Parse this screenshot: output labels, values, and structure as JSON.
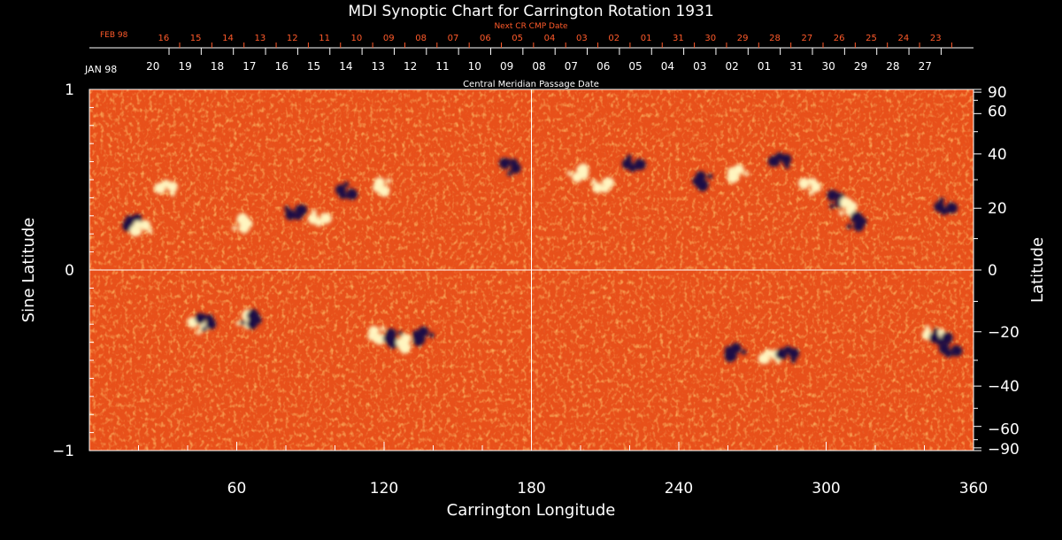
{
  "chart_data": {
    "type": "heatmap",
    "title": "MDI Synoptic Chart for Carrington Rotation 1931",
    "xlabel": "Carrington Longitude",
    "ylabel_left": "Sine Latitude",
    "ylabel_right": "Latitude",
    "xlim": [
      0,
      360
    ],
    "ylim": [
      -1,
      1
    ],
    "x_ticks": [
      60,
      120,
      180,
      240,
      300,
      360
    ],
    "y_ticks_left": [
      "1",
      "0",
      "−1"
    ],
    "y_ticks_right": [
      90,
      60,
      40,
      20,
      0,
      -20,
      -40,
      -60,
      -90
    ],
    "y_ticks_right_labels": [
      "90",
      "60",
      "40",
      "20",
      "0",
      "−20",
      "−40",
      "−60",
      "−90"
    ],
    "grid": "lines at longitude 180 and sine latitude 0",
    "colormap": {
      "background": "#e8501a",
      "positive": "#fff5c0",
      "negative": "#1a1045"
    },
    "top_axis_main": {
      "month_label": "JAN 98",
      "caption": "Central Meridian Passage Date",
      "dates": [
        "20",
        "19",
        "18",
        "17",
        "16",
        "15",
        "14",
        "13",
        "12",
        "11",
        "10",
        "09",
        "08",
        "07",
        "06",
        "05",
        "04",
        "03",
        "02",
        "01",
        "31",
        "30",
        "29",
        "28",
        "27"
      ],
      "color": "#ffffff"
    },
    "top_axis_next": {
      "month_label": "FEB 98",
      "caption": "Next CR CMP Date",
      "dates": [
        "16",
        "15",
        "14",
        "13",
        "12",
        "11",
        "10",
        "09",
        "08",
        "07",
        "06",
        "05",
        "04",
        "03",
        "02",
        "01",
        "31",
        "30",
        "29",
        "28",
        "27",
        "26",
        "25",
        "24",
        "23"
      ],
      "color": "#ff5a2a"
    },
    "features": [
      {
        "lon": 17,
        "sinlat": 0.25,
        "polarity": "negative"
      },
      {
        "lon": 20,
        "sinlat": 0.22,
        "polarity": "positive"
      },
      {
        "lon": 30,
        "sinlat": 0.45,
        "polarity": "positive"
      },
      {
        "lon": 62,
        "sinlat": 0.27,
        "polarity": "positive"
      },
      {
        "lon": 85,
        "sinlat": 0.33,
        "polarity": "negative"
      },
      {
        "lon": 95,
        "sinlat": 0.29,
        "polarity": "positive"
      },
      {
        "lon": 106,
        "sinlat": 0.43,
        "polarity": "negative"
      },
      {
        "lon": 120,
        "sinlat": 0.45,
        "polarity": "positive"
      },
      {
        "lon": 170,
        "sinlat": 0.58,
        "polarity": "negative"
      },
      {
        "lon": 200,
        "sinlat": 0.55,
        "polarity": "positive"
      },
      {
        "lon": 210,
        "sinlat": 0.48,
        "polarity": "positive"
      },
      {
        "lon": 223,
        "sinlat": 0.59,
        "polarity": "negative"
      },
      {
        "lon": 250,
        "sinlat": 0.48,
        "polarity": "negative"
      },
      {
        "lon": 263,
        "sinlat": 0.52,
        "polarity": "positive"
      },
      {
        "lon": 280,
        "sinlat": 0.6,
        "polarity": "negative"
      },
      {
        "lon": 292,
        "sinlat": 0.47,
        "polarity": "positive"
      },
      {
        "lon": 303,
        "sinlat": 0.4,
        "polarity": "negative"
      },
      {
        "lon": 308,
        "sinlat": 0.36,
        "polarity": "positive"
      },
      {
        "lon": 312,
        "sinlat": 0.28,
        "polarity": "negative"
      },
      {
        "lon": 350,
        "sinlat": 0.35,
        "polarity": "negative"
      },
      {
        "lon": 43,
        "sinlat": -0.3,
        "polarity": "positive"
      },
      {
        "lon": 46,
        "sinlat": -0.28,
        "polarity": "negative"
      },
      {
        "lon": 64,
        "sinlat": -0.26,
        "polarity": "positive"
      },
      {
        "lon": 66,
        "sinlat": -0.26,
        "polarity": "negative"
      },
      {
        "lon": 118,
        "sinlat": -0.37,
        "polarity": "positive"
      },
      {
        "lon": 124,
        "sinlat": -0.39,
        "polarity": "negative"
      },
      {
        "lon": 129,
        "sinlat": -0.42,
        "polarity": "positive"
      },
      {
        "lon": 135,
        "sinlat": -0.38,
        "polarity": "negative"
      },
      {
        "lon": 262,
        "sinlat": -0.47,
        "polarity": "negative"
      },
      {
        "lon": 276,
        "sinlat": -0.49,
        "polarity": "positive"
      },
      {
        "lon": 283,
        "sinlat": -0.47,
        "polarity": "negative"
      },
      {
        "lon": 345,
        "sinlat": -0.35,
        "polarity": "positive"
      },
      {
        "lon": 348,
        "sinlat": -0.37,
        "polarity": "negative"
      },
      {
        "lon": 352,
        "sinlat": -0.44,
        "polarity": "negative"
      }
    ]
  }
}
